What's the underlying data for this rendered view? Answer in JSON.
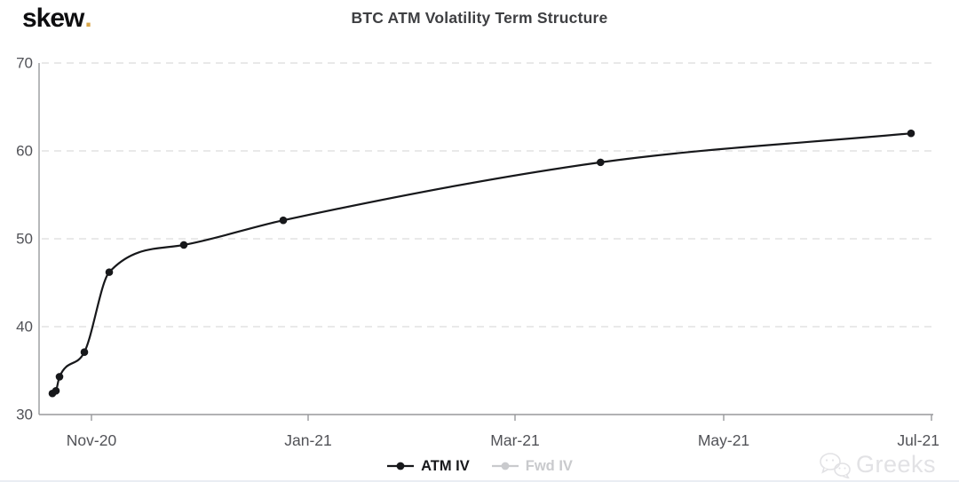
{
  "header": {
    "logo_text": "skew",
    "logo_dot": "."
  },
  "chart_data": {
    "type": "line",
    "title": "BTC ATM Volatility Term Structure",
    "xlabel": "",
    "ylabel": "",
    "ylim": [
      30,
      70
    ],
    "yticks": [
      70,
      60,
      50,
      40,
      30
    ],
    "xticks": [
      {
        "label": "Nov-20",
        "date": "2020-11-01"
      },
      {
        "label": "Jan-21",
        "date": "2021-01-01"
      },
      {
        "label": "Mar-21",
        "date": "2021-03-01"
      },
      {
        "label": "May-21",
        "date": "2021-05-01"
      },
      {
        "label": "Jul-21",
        "date": "2021-07-01"
      }
    ],
    "grid": "horizontal-dashed",
    "legend_position": "bottom-center",
    "series": [
      {
        "name": "ATM IV",
        "color": "#17181b",
        "visible": true,
        "points": [
          {
            "date": "2020-10-21",
            "value": 32.4
          },
          {
            "date": "2020-10-22",
            "value": 32.7
          },
          {
            "date": "2020-10-23",
            "value": 34.3
          },
          {
            "date": "2020-10-30",
            "value": 37.1
          },
          {
            "date": "2020-11-06",
            "value": 46.2
          },
          {
            "date": "2020-11-27",
            "value": 49.3
          },
          {
            "date": "2020-12-25",
            "value": 52.1
          },
          {
            "date": "2021-03-26",
            "value": 58.7
          },
          {
            "date": "2021-06-25",
            "value": 62.0
          }
        ]
      },
      {
        "name": "Fwd IV",
        "color": "#c9cacd",
        "visible": false,
        "points": []
      }
    ]
  },
  "watermark": {
    "text": "Greeks"
  },
  "colors": {
    "axis_line": "#98999c",
    "axis_label": "#515257",
    "gridline": "#e9e9e9",
    "title": "#3e3f42",
    "logo_dot": "#d9a64a"
  }
}
